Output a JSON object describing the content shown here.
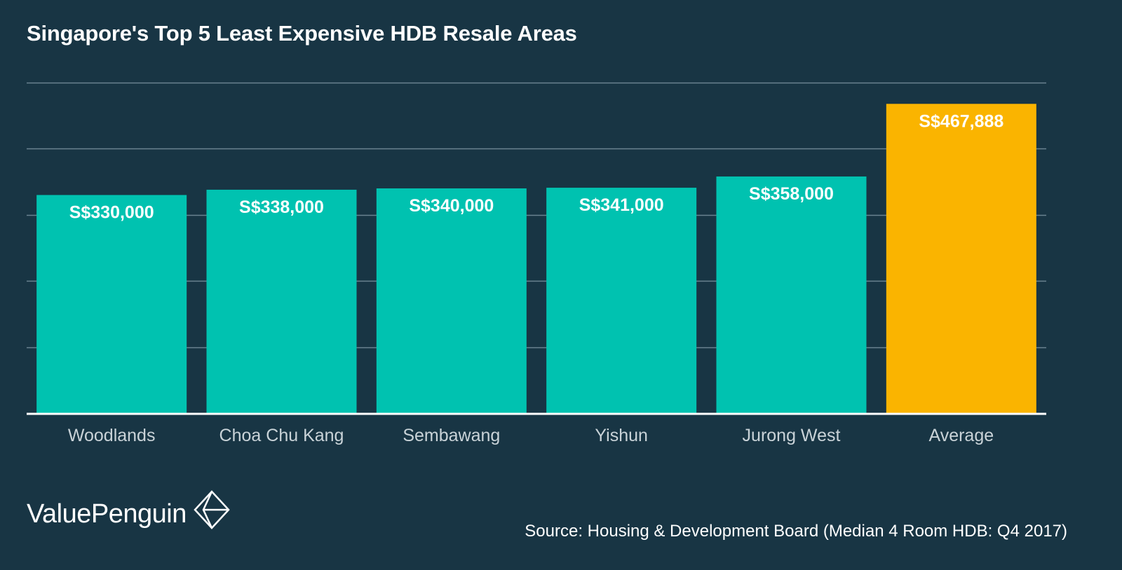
{
  "title": "Singapore's Top 5 Least Expensive HDB Resale Areas",
  "source": "Source: Housing & Development Board (Median 4 Room HDB: Q4 2017)",
  "brand": "ValuePenguin",
  "colors": {
    "background": "#183544",
    "bar": "#00c2b0",
    "highlight": "#fab400",
    "grid": "#6a8390",
    "axis": "#ffffff",
    "tick_label": "#c9d3d8",
    "value_label": "#ffffff"
  },
  "chart_data": {
    "type": "bar",
    "title": "Singapore's Top 5 Least Expensive HDB Resale Areas",
    "categories": [
      "Woodlands",
      "Choa Chu Kang",
      "Sembawang",
      "Yishun",
      "Jurong West",
      "Average"
    ],
    "values": [
      330000,
      338000,
      340000,
      341000,
      358000,
      467888
    ],
    "value_labels": [
      "S$330,000",
      "S$338,000",
      "S$340,000",
      "S$341,000",
      "S$358,000",
      "S$467,888"
    ],
    "highlight_index": 5,
    "xlabel": "",
    "ylabel": "",
    "ylim": [
      0,
      500000
    ],
    "grid_step": 100000,
    "grid": true,
    "legend": "none"
  }
}
